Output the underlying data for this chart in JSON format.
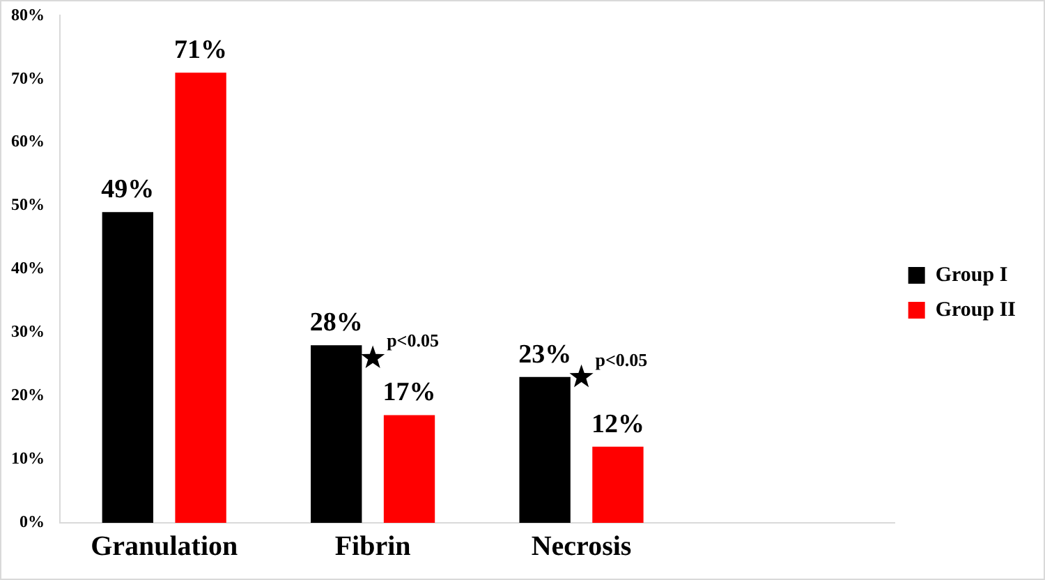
{
  "chart_data": {
    "type": "bar",
    "categories": [
      "Granulation",
      "Fibrin",
      "Necrosis",
      null
    ],
    "series": [
      {
        "name": "Group I",
        "color": "#000000",
        "values": [
          49,
          28,
          23,
          null
        ]
      },
      {
        "name": "Group II",
        "color": "#ff0000",
        "values": [
          71,
          17,
          12,
          null
        ]
      },
      {
        "type": "scatter",
        "color": "#000000",
        "marker": "star",
        "x": [
          "Fibrin",
          "Necrosis"
        ],
        "values": [
          26,
          23
        ]
      }
    ],
    "ylim": [
      0,
      80
    ],
    "yticks": [
      {
        "value": 0,
        "label": "0%"
      },
      {
        "value": 10,
        "label": "10%"
      },
      {
        "value": 20,
        "label": "20%"
      },
      {
        "value": 30,
        "label": "30%"
      },
      {
        "value": 40,
        "label": "40%"
      },
      {
        "value": 50,
        "label": "50%"
      },
      {
        "value": 60,
        "label": "60%"
      },
      {
        "value": 70,
        "label": "70%"
      },
      {
        "value": 80,
        "label": "80%"
      }
    ],
    "annotations": [
      {
        "text": "p<0.05",
        "x": "Fibrin",
        "y": 26
      },
      {
        "text": "p<0.05",
        "x": "Necrosis",
        "y": 23
      }
    ],
    "value_labels": [
      [
        "49%",
        "28%",
        "23%",
        null
      ],
      [
        "71%",
        "17%",
        "12%",
        null
      ]
    ],
    "legend": "right",
    "grid": false
  }
}
